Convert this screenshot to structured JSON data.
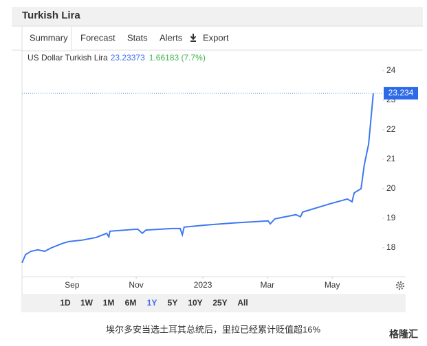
{
  "header": {
    "title": "Turkish Lira",
    "tabs": [
      "Summary",
      "Forecast",
      "Stats",
      "Alerts",
      "Export"
    ]
  },
  "legend": {
    "series_name": "US Dollar Turkish Lira",
    "price": "23.23373",
    "change": "1.66183 (7.7%)"
  },
  "chart_data": {
    "type": "line",
    "series": [
      {
        "name": "US Dollar Turkish Lira",
        "color": "#3c78f0",
        "x": [
          0,
          1,
          2.5,
          4.4,
          6.3,
          8.2,
          11.1,
          13,
          16.8,
          20.6,
          22.5,
          23.5,
          24.1,
          24.4,
          32.1,
          33.4,
          34.4,
          41.6,
          43.9,
          44.5,
          45,
          51.2,
          58.8,
          68.3,
          68.9,
          70.2,
          76,
          77.3,
          77.9,
          85.5,
          90.3,
          91.6,
          92.2,
          94.1,
          95,
          96.2,
          97,
          97.5
        ],
        "values": [
          17.49,
          17.77,
          17.88,
          17.93,
          17.88,
          18.0,
          18.14,
          18.21,
          18.26,
          18.35,
          18.44,
          18.49,
          18.37,
          18.56,
          18.63,
          18.49,
          18.6,
          18.65,
          18.65,
          18.44,
          18.7,
          18.77,
          18.84,
          18.91,
          18.81,
          18.98,
          19.12,
          19.05,
          19.21,
          19.49,
          19.65,
          19.56,
          19.86,
          20.0,
          20.81,
          21.51,
          22.56,
          23.234
        ]
      }
    ],
    "last_value": 23.234,
    "xlim": [
      0,
      100
    ],
    "xticks": [
      {
        "value": 13.9,
        "label": "Sep"
      },
      {
        "value": 31.7,
        "label": "Nov"
      },
      {
        "value": 50.2,
        "label": "2023"
      },
      {
        "value": 68.1,
        "label": "Mar"
      },
      {
        "value": 86.1,
        "label": "May"
      }
    ],
    "ylim": [
      17.02,
      24.65
    ],
    "yticks": [
      18,
      19,
      20,
      21,
      22,
      23,
      24
    ]
  },
  "range_buttons": [
    "1D",
    "1W",
    "1M",
    "6M",
    "1Y",
    "5Y",
    "10Y",
    "25Y",
    "All"
  ],
  "active_range": 4,
  "caption": "埃尔多安当选土耳其总统后，里拉已经累计贬值超16%",
  "watermark": "格隆汇"
}
